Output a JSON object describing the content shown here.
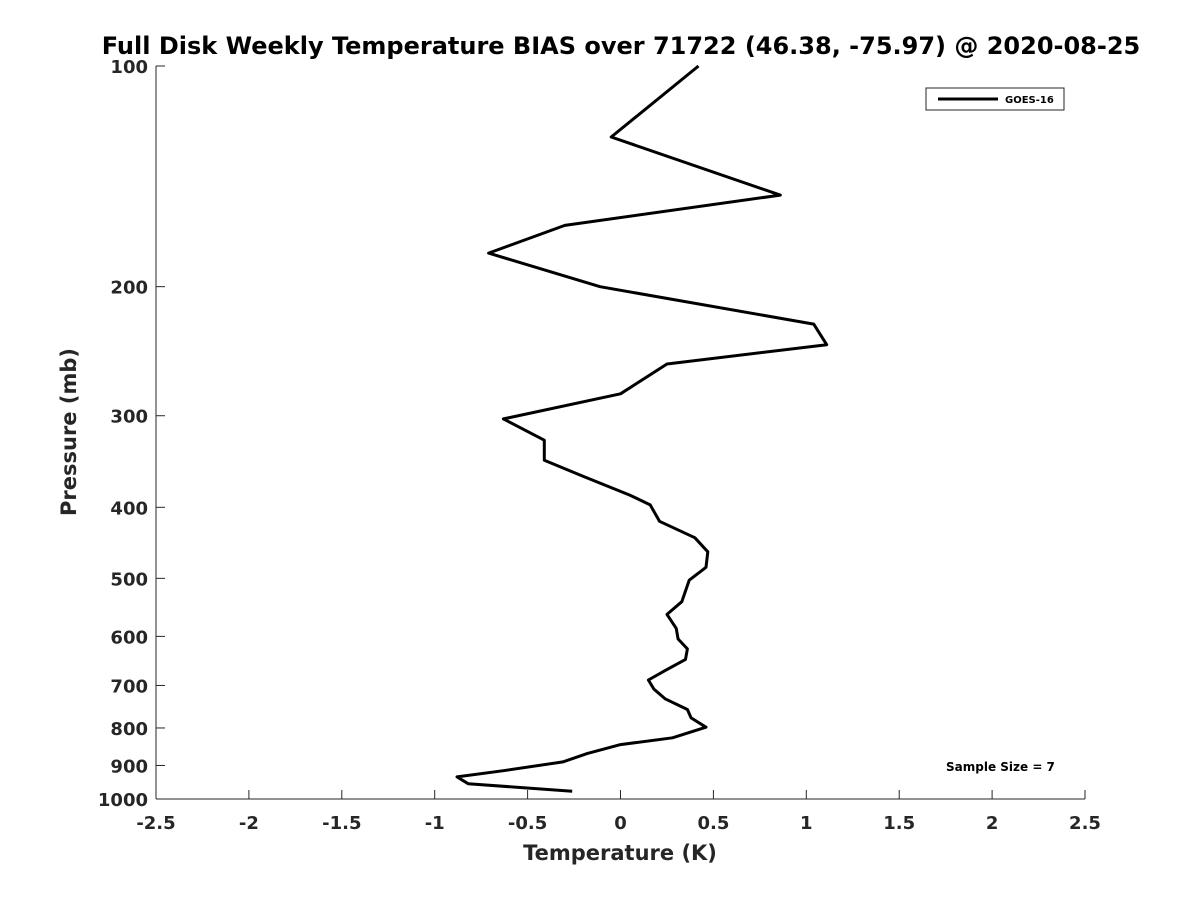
{
  "chart_data": {
    "type": "line",
    "title": "Full Disk Weekly Temperature BIAS over 71722 (46.38, -75.97) @ 2020-08-25",
    "xlabel": "Temperature (K)",
    "ylabel": "Pressure (mb)",
    "xlim": [
      -2.5,
      2.5
    ],
    "ylim": [
      100,
      1000
    ],
    "y_scale": "log",
    "y_reversed": true,
    "x_ticks": [
      "-2.5",
      "-2",
      "-1.5",
      "-1",
      "-0.5",
      "0",
      "0.5",
      "1",
      "1.5",
      "2",
      "2.5"
    ],
    "y_ticks": [
      "100",
      "200",
      "300",
      "400",
      "500",
      "600",
      "700",
      "800",
      "900",
      "1000"
    ],
    "grid": false,
    "legend_position": "top-right",
    "annotation": "Sample Size = 7",
    "series": [
      {
        "name": "GOES-16",
        "color": "#000000",
        "x": [
          0.42,
          -0.05,
          0.86,
          -0.3,
          -0.71,
          -0.11,
          1.04,
          1.11,
          0.25,
          0.0,
          -0.63,
          -0.41,
          -0.41,
          -0.2,
          0.05,
          0.16,
          0.21,
          0.4,
          0.47,
          0.46,
          0.37,
          0.33,
          0.25,
          0.3,
          0.31,
          0.36,
          0.35,
          0.24,
          0.15,
          0.18,
          0.24,
          0.36,
          0.38,
          0.46,
          0.28,
          0.0,
          -0.18,
          -0.31,
          -0.63,
          -0.88,
          -0.82,
          -0.26
        ],
        "y": [
          100,
          125,
          150,
          165,
          180,
          200,
          225,
          240,
          255,
          280,
          303,
          324,
          345,
          363,
          385,
          397,
          418,
          440,
          460,
          483,
          503,
          538,
          560,
          585,
          605,
          624,
          645,
          668,
          688,
          708,
          730,
          755,
          775,
          798,
          825,
          843,
          867,
          890,
          915,
          933,
          953,
          976
        ]
      }
    ]
  }
}
